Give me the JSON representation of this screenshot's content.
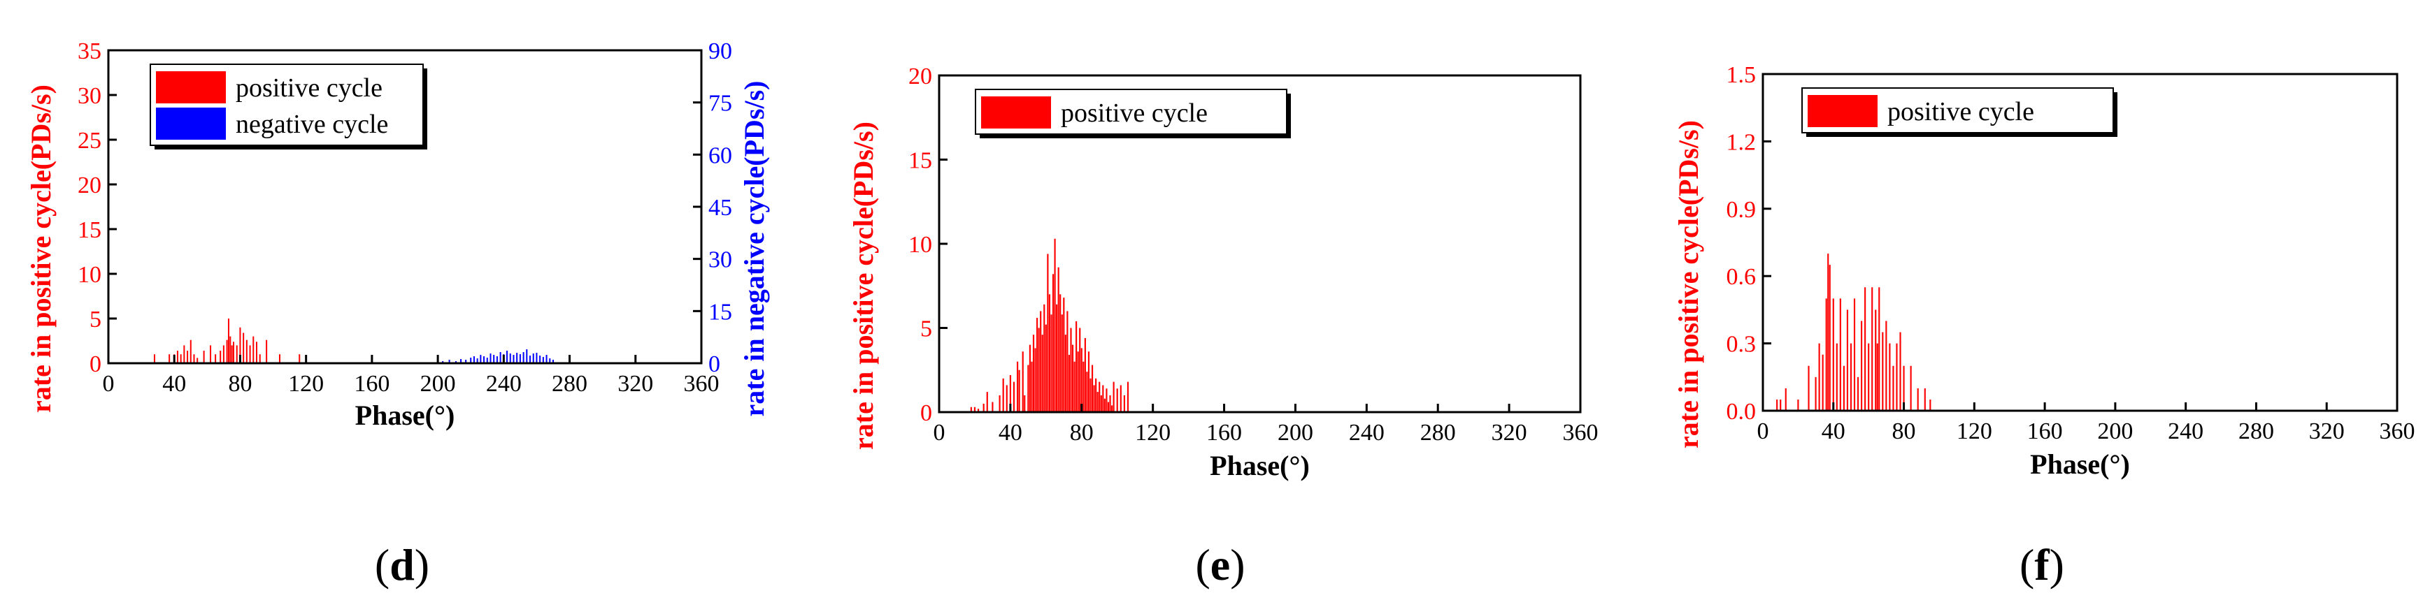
{
  "chart_data": [
    {
      "type": "bar",
      "panel_letter": "d",
      "xlabel": "Phase(°)",
      "ylabel": "rate in positive cycle(PDs/s)",
      "y2label": "rate in negative cycle(PDs/s)",
      "xlim": [
        0,
        360
      ],
      "ylim": [
        0,
        35
      ],
      "y2lim": [
        0,
        90
      ],
      "xticks": [
        "0",
        "40",
        "80",
        "120",
        "160",
        "200",
        "240",
        "280",
        "320",
        "360"
      ],
      "yticks": [
        "0",
        "5",
        "10",
        "15",
        "20",
        "25",
        "30",
        "35"
      ],
      "y2ticks": [
        "0",
        "15",
        "30",
        "45",
        "60",
        "75",
        "90"
      ],
      "grid": false,
      "legend_position": "top-left",
      "colors": {
        "positive": "#ff0000",
        "negative": "#0000ff",
        "axis_left": "#ff0000",
        "axis_right": "#0000ff"
      },
      "series": [
        {
          "name": "positive cycle",
          "axis": "left",
          "x": [
            28,
            37,
            40,
            42,
            44,
            46,
            48,
            50,
            52,
            54,
            58,
            62,
            65,
            68,
            70,
            72,
            73,
            74,
            75,
            76,
            78,
            80,
            82,
            84,
            86,
            88,
            90,
            92,
            96,
            104,
            116,
            120
          ],
          "values": [
            1.0,
            1.0,
            1.0,
            1.4,
            1.0,
            2.0,
            1.4,
            2.6,
            1.0,
            0.6,
            1.4,
            2.0,
            1.0,
            1.4,
            2.0,
            2.6,
            5.0,
            3.0,
            2.0,
            2.4,
            2.0,
            4.0,
            3.4,
            2.6,
            2.0,
            3.0,
            2.4,
            1.0,
            2.6,
            1.0,
            1.0,
            0.6
          ]
        },
        {
          "name": "negative cycle",
          "axis": "right",
          "x": [
            203,
            207,
            211,
            214,
            217,
            220,
            222,
            224,
            226,
            228,
            230,
            232,
            234,
            236,
            238,
            240,
            242,
            244,
            246,
            248,
            250,
            252,
            254,
            256,
            258,
            260,
            262,
            264,
            266,
            268,
            270
          ],
          "values": [
            0.6,
            1.0,
            0.6,
            1.2,
            1.0,
            1.6,
            2.0,
            1.4,
            2.4,
            2.0,
            1.6,
            2.8,
            2.4,
            2.0,
            3.2,
            2.6,
            3.6,
            2.8,
            2.4,
            3.0,
            2.6,
            3.2,
            4.0,
            2.2,
            2.8,
            3.0,
            2.2,
            1.8,
            2.4,
            1.4,
            1.0
          ]
        }
      ]
    },
    {
      "type": "bar",
      "panel_letter": "e",
      "xlabel": "Phase(°)",
      "ylabel": "rate in positive cycle(PDs/s)",
      "xlim": [
        0,
        360
      ],
      "ylim": [
        0,
        20
      ],
      "xticks": [
        "0",
        "40",
        "80",
        "120",
        "160",
        "200",
        "240",
        "280",
        "320",
        "360"
      ],
      "yticks": [
        "0",
        "5",
        "10",
        "15",
        "20"
      ],
      "grid": false,
      "legend_position": "top-left",
      "colors": {
        "positive": "#ff0000",
        "axis_left": "#ff0000"
      },
      "series": [
        {
          "name": "positive cycle",
          "axis": "left",
          "x": [
            18,
            20,
            22,
            25,
            27,
            30,
            34,
            36,
            38,
            40,
            42,
            44,
            45,
            47,
            48,
            50,
            51,
            52,
            53,
            54,
            55,
            56,
            57,
            58,
            59,
            60,
            61,
            62,
            63,
            64,
            65,
            66,
            67,
            68,
            69,
            70,
            71,
            72,
            73,
            74,
            75,
            76,
            77,
            78,
            79,
            80,
            81,
            82,
            83,
            84,
            85,
            86,
            87,
            88,
            89,
            90,
            91,
            92,
            93,
            94,
            95,
            96,
            97,
            98,
            100,
            102,
            104,
            106
          ],
          "values": [
            0.3,
            0.3,
            0.2,
            0.5,
            1.2,
            0.6,
            1.0,
            2.0,
            1.6,
            2.2,
            1.8,
            3.0,
            2.5,
            3.6,
            1.0,
            2.8,
            4.0,
            3.0,
            4.6,
            3.8,
            5.6,
            5.0,
            6.0,
            4.6,
            6.4,
            5.2,
            9.4,
            7.0,
            5.8,
            8.2,
            10.3,
            6.4,
            8.6,
            7.0,
            5.8,
            6.8,
            4.6,
            6.0,
            3.4,
            5.0,
            4.0,
            3.0,
            5.4,
            3.6,
            5.0,
            3.8,
            3.0,
            4.4,
            2.4,
            3.6,
            2.0,
            2.8,
            1.6,
            2.0,
            1.2,
            1.8,
            1.0,
            1.6,
            0.8,
            1.4,
            0.6,
            1.0,
            0.4,
            1.8,
            1.4,
            1.6,
            1.0,
            1.8
          ]
        }
      ]
    },
    {
      "type": "bar",
      "panel_letter": "f",
      "xlabel": "Phase(°)",
      "ylabel": "rate in positive cycle(PDs/s)",
      "xlim": [
        0,
        360
      ],
      "ylim": [
        0,
        1.5
      ],
      "xticks": [
        "0",
        "40",
        "80",
        "120",
        "160",
        "200",
        "240",
        "280",
        "320",
        "360"
      ],
      "yticks": [
        "0.0",
        "0.3",
        "0.6",
        "0.9",
        "1.2",
        "1.5"
      ],
      "grid": false,
      "legend_position": "top-left",
      "colors": {
        "positive": "#ff0000",
        "axis_left": "#ff0000"
      },
      "series": [
        {
          "name": "positive cycle",
          "axis": "left",
          "x": [
            8,
            10,
            13,
            20,
            26,
            30,
            32,
            34,
            36,
            37,
            38,
            40,
            42,
            44,
            46,
            48,
            50,
            52,
            54,
            56,
            58,
            60,
            62,
            64,
            65,
            66,
            68,
            70,
            72,
            74,
            76,
            78,
            80,
            84,
            88,
            92,
            95
          ],
          "values": [
            0.05,
            0.05,
            0.1,
            0.05,
            0.2,
            0.15,
            0.3,
            0.25,
            0.5,
            0.7,
            0.65,
            0.5,
            0.3,
            0.5,
            0.2,
            0.45,
            0.3,
            0.5,
            0.15,
            0.4,
            0.55,
            0.3,
            0.55,
            0.45,
            0.3,
            0.55,
            0.35,
            0.4,
            0.3,
            0.2,
            0.3,
            0.35,
            0.2,
            0.2,
            0.1,
            0.1,
            0.05
          ]
        }
      ]
    }
  ]
}
